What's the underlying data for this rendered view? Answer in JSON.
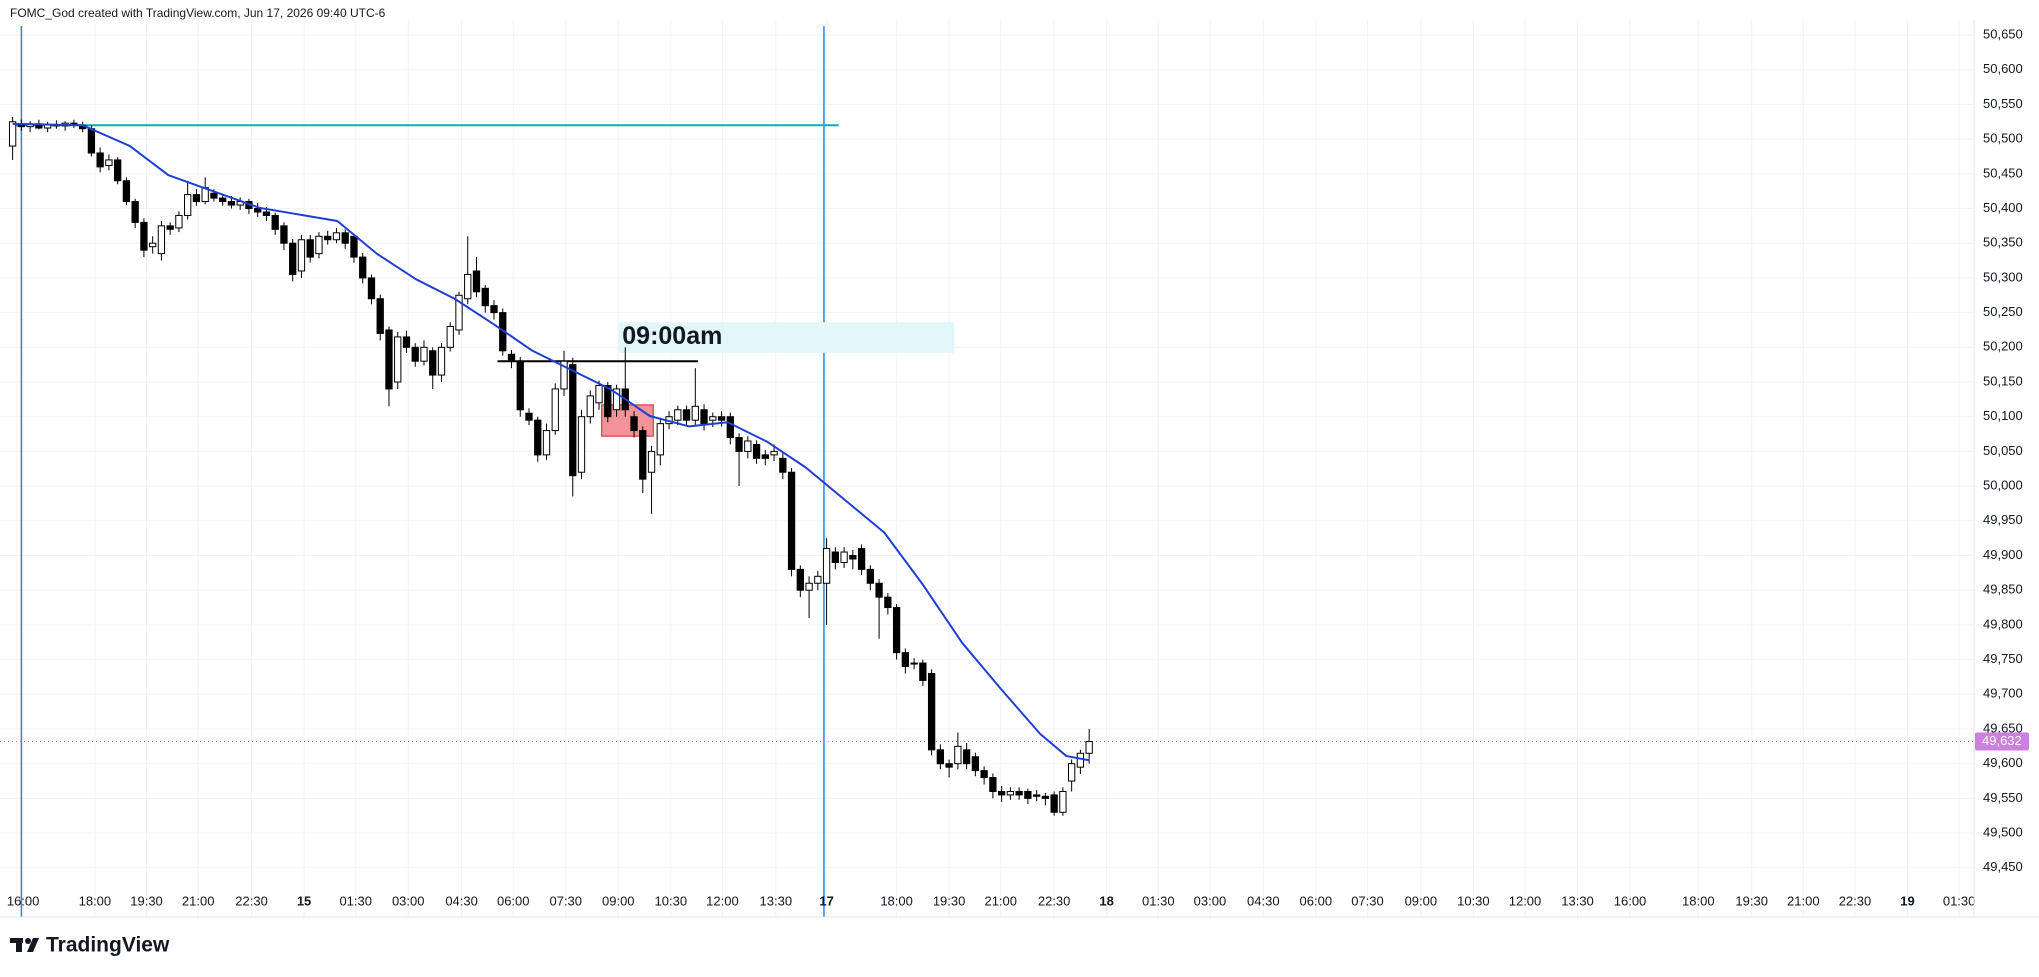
{
  "header": "FOMC_God created with TradingView.com, Jun 17, 2026 09:40 UTC-6",
  "footer": {
    "brand": "TradingView"
  },
  "chart_data": {
    "type": "candlestick",
    "up_color": "#ffffff",
    "down_color": "#000000",
    "border_color": "#000000",
    "grid": true,
    "xlim": [
      -0.3,
      224.1
    ],
    "ylim": [
      49418,
      50663
    ],
    "yticks": [
      {
        "value": 49450,
        "label": "49,450"
      },
      {
        "value": 49500,
        "label": "49,500"
      },
      {
        "value": 49550,
        "label": "49,550"
      },
      {
        "value": 49600,
        "label": "49,600"
      },
      {
        "value": 49650,
        "label": "49,650"
      },
      {
        "value": 49700,
        "label": "49,700"
      },
      {
        "value": 49750,
        "label": "49,750"
      },
      {
        "value": 49800,
        "label": "49,800"
      },
      {
        "value": 49850,
        "label": "49,850"
      },
      {
        "value": 49900,
        "label": "49,900"
      },
      {
        "value": 49950,
        "label": "49,950"
      },
      {
        "value": 50000,
        "label": "50,000"
      },
      {
        "value": 50050,
        "label": "50,050"
      },
      {
        "value": 50100,
        "label": "50,100"
      },
      {
        "value": 50150,
        "label": "50,150"
      },
      {
        "value": 50200,
        "label": "50,200"
      },
      {
        "value": 50250,
        "label": "50,250"
      },
      {
        "value": 50300,
        "label": "50,300"
      },
      {
        "value": 50350,
        "label": "50,350"
      },
      {
        "value": 50400,
        "label": "50,400"
      },
      {
        "value": 50450,
        "label": "50,450"
      },
      {
        "value": 50500,
        "label": "50,500"
      },
      {
        "value": 50550,
        "label": "50,550"
      },
      {
        "value": 50600,
        "label": "50,600"
      },
      {
        "value": 50650,
        "label": "50,650"
      }
    ],
    "xticks": [
      {
        "value": 1.2,
        "label": "16:00"
      },
      {
        "value": 9.4,
        "label": "18:00"
      },
      {
        "value": 15.3,
        "label": "19:30"
      },
      {
        "value": 21.2,
        "label": "21:00"
      },
      {
        "value": 27.3,
        "label": "22:30"
      },
      {
        "value": 33.3,
        "label": "15"
      },
      {
        "value": 39.2,
        "label": "01:30"
      },
      {
        "value": 45.2,
        "label": "03:00"
      },
      {
        "value": 51.3,
        "label": "04:30"
      },
      {
        "value": 57.2,
        "label": "06:00"
      },
      {
        "value": 63.2,
        "label": "07:30"
      },
      {
        "value": 69.2,
        "label": "09:00"
      },
      {
        "value": 75.2,
        "label": "10:30"
      },
      {
        "value": 81.1,
        "label": "12:00"
      },
      {
        "value": 87.2,
        "label": "13:30"
      },
      {
        "value": 93.0,
        "label": "17"
      },
      {
        "value": 101.0,
        "label": "18:00"
      },
      {
        "value": 107.0,
        "label": "19:30"
      },
      {
        "value": 112.9,
        "label": "21:00"
      },
      {
        "value": 119.0,
        "label": "22:30"
      },
      {
        "value": 125.0,
        "label": "18"
      },
      {
        "value": 130.9,
        "label": "01:30"
      },
      {
        "value": 136.8,
        "label": "03:00"
      },
      {
        "value": 142.9,
        "label": "04:30"
      },
      {
        "value": 148.9,
        "label": "06:00"
      },
      {
        "value": 154.8,
        "label": "07:30"
      },
      {
        "value": 160.9,
        "label": "09:00"
      },
      {
        "value": 166.9,
        "label": "10:30"
      },
      {
        "value": 172.8,
        "label": "12:00"
      },
      {
        "value": 178.8,
        "label": "13:30"
      },
      {
        "value": 184.8,
        "label": "16:00"
      },
      {
        "value": 192.6,
        "label": "18:00"
      },
      {
        "value": 198.7,
        "label": "19:30"
      },
      {
        "value": 204.6,
        "label": "21:00"
      },
      {
        "value": 210.5,
        "label": "22:30"
      },
      {
        "value": 216.5,
        "label": "19"
      },
      {
        "value": 222.4,
        "label": "01:30"
      }
    ],
    "open": [
      50490,
      50522,
      50518,
      50522,
      50516,
      50521,
      50519,
      50523,
      50520,
      50515,
      50480,
      50462,
      50470,
      50440,
      50410,
      50380,
      50345,
      50335,
      50375,
      50372,
      50390,
      50420,
      50410,
      50422,
      50415,
      50410,
      50405,
      50410,
      50400,
      50395,
      50390,
      50375,
      50350,
      50310,
      50355,
      50335,
      50360,
      50355,
      50365,
      50360,
      50330,
      50300,
      50270,
      50225,
      50150,
      50215,
      50200,
      50180,
      50195,
      50160,
      50200,
      50225,
      50270,
      50310,
      50285,
      50260,
      50250,
      50190,
      50180,
      50105,
      50095,
      50045,
      50080,
      50140,
      50175,
      50020,
      50100,
      50120,
      50145,
      50110,
      50140,
      50100,
      50080,
      50020,
      50045,
      50090,
      50095,
      50110,
      50095,
      50110,
      50095,
      50100,
      50100,
      50070,
      50050,
      50060,
      50045,
      50045,
      50040,
      50020,
      49880,
      49850,
      49860,
      49860,
      49905,
      49890,
      49900,
      49910,
      49880,
      49860,
      49840,
      49825,
      49760,
      49745,
      49745,
      49730,
      49620,
      49600,
      49600,
      49620,
      49610,
      49590,
      49580,
      49560,
      49555,
      49560,
      49560,
      49555,
      49553,
      49555,
      49530,
      49575,
      49595,
      49615
    ],
    "high": [
      50532,
      50528,
      50526,
      50528,
      50525,
      50527,
      50526,
      50528,
      50525,
      50520,
      50488,
      50478,
      50474,
      50445,
      50414,
      50386,
      50360,
      50382,
      50380,
      50396,
      50440,
      50428,
      50445,
      50428,
      50420,
      50418,
      50416,
      50414,
      50408,
      50402,
      50394,
      50380,
      50356,
      50362,
      50362,
      50366,
      50368,
      50372,
      50370,
      50364,
      50336,
      50305,
      50276,
      50230,
      50222,
      50224,
      50206,
      50210,
      50200,
      50206,
      50236,
      50280,
      50360,
      50330,
      50290,
      50268,
      50256,
      50196,
      50186,
      50112,
      50100,
      50090,
      50148,
      50195,
      50185,
      50110,
      50138,
      50152,
      50150,
      50146,
      50200,
      50108,
      50086,
      50058,
      50098,
      50108,
      50116,
      50116,
      50170,
      50118,
      50106,
      50108,
      50106,
      50076,
      50072,
      50066,
      50052,
      50060,
      50048,
      50026,
      49886,
      49870,
      49878,
      49925,
      49912,
      49912,
      49908,
      49916,
      49886,
      49866,
      49846,
      49830,
      49766,
      49752,
      49750,
      49736,
      49628,
      49606,
      49645,
      49630,
      49616,
      49596,
      49586,
      49568,
      49566,
      49566,
      49564,
      49562,
      49558,
      49560,
      49566,
      49606,
      49620,
      49650
    ],
    "low": [
      50470,
      50512,
      50510,
      50514,
      50510,
      50515,
      50512,
      50516,
      50510,
      50475,
      50452,
      50455,
      50435,
      50405,
      50372,
      50330,
      50335,
      50325,
      50362,
      50366,
      50384,
      50404,
      50406,
      50410,
      50404,
      50400,
      50398,
      50392,
      50388,
      50382,
      50362,
      50340,
      50295,
      50300,
      50322,
      50328,
      50348,
      50350,
      50342,
      50322,
      50292,
      50262,
      50210,
      50115,
      50140,
      50192,
      50172,
      50174,
      50140,
      50150,
      50194,
      50218,
      50262,
      50272,
      50250,
      50240,
      50188,
      50170,
      50100,
      50088,
      50035,
      50038,
      50074,
      50130,
      49985,
      50010,
      50090,
      50110,
      50092,
      50100,
      50100,
      50070,
      49990,
      49960,
      50030,
      50082,
      50088,
      50086,
      50088,
      50080,
      50085,
      50086,
      50060,
      50000,
      50040,
      50032,
      50030,
      50036,
      50010,
      49870,
      49840,
      49810,
      49850,
      49800,
      49880,
      49882,
      49880,
      49872,
      49850,
      49780,
      49815,
      49750,
      49730,
      49736,
      49712,
      49612,
      49592,
      49580,
      49592,
      49592,
      49582,
      49570,
      49550,
      49545,
      49548,
      49548,
      49542,
      49546,
      49540,
      49525,
      49525,
      49560,
      49585,
      49600
    ],
    "close": [
      50525,
      50518,
      50522,
      50516,
      50521,
      50519,
      50523,
      50520,
      50515,
      50480,
      50460,
      50470,
      50440,
      50410,
      50380,
      50340,
      50350,
      50375,
      50370,
      50390,
      50420,
      50410,
      50430,
      50415,
      50410,
      50405,
      50410,
      50400,
      50395,
      50390,
      50370,
      50350,
      50305,
      50355,
      50330,
      50360,
      50355,
      50365,
      50350,
      50330,
      50300,
      50270,
      50220,
      50140,
      50215,
      50200,
      50180,
      50200,
      50160,
      50200,
      50230,
      50275,
      50305,
      50280,
      50260,
      50250,
      50195,
      50180,
      50110,
      50095,
      50045,
      50080,
      50140,
      50180,
      50015,
      50100,
      50130,
      50145,
      50100,
      50140,
      50110,
      50080,
      50010,
      50050,
      50090,
      50100,
      50110,
      50095,
      50115,
      50090,
      50100,
      50095,
      50070,
      50050,
      50065,
      50040,
      50040,
      50050,
      50020,
      49880,
      49850,
      49860,
      49870,
      49910,
      49890,
      49905,
      49895,
      49880,
      49860,
      49840,
      49825,
      49760,
      49740,
      49745,
      49720,
      49620,
      49600,
      49595,
      49625,
      49600,
      49590,
      49580,
      49560,
      49555,
      49560,
      49555,
      49550,
      49553,
      49550,
      49530,
      49560,
      49600,
      49615,
      49632
    ],
    "ema": {
      "color": "#1e3fd0",
      "x": [
        0,
        8,
        13.4,
        17.8,
        28.2,
        37.1,
        41.6,
        46.1,
        50.5,
        55,
        59.4,
        63.9,
        68.4,
        72.8,
        77.3,
        81.7,
        86.2,
        90.6,
        95.1,
        99.6,
        104,
        108.5,
        112.9,
        117.4,
        120.4,
        123
      ],
      "values": [
        50522,
        50520,
        50490,
        50448,
        50401,
        50382,
        50335,
        50298,
        50270,
        50233,
        50195,
        50167,
        50139,
        50101,
        50086,
        50092,
        50064,
        50027,
        49980,
        49933,
        49858,
        49774,
        49708,
        49643,
        49611,
        49605
      ]
    },
    "last_price": {
      "value": 49632,
      "label": "49,632",
      "color": "#cc7fdc"
    },
    "drawings": {
      "vertical_lines": {
        "color": "#2a86e0",
        "x": [
          1.0,
          92.7
        ]
      },
      "level_line": {
        "color": "#00acc1",
        "y": 50520,
        "x": [
          0,
          94.4
        ]
      },
      "open_line": {
        "color": "#000000",
        "y": 50180,
        "x": [
          55.4,
          78.3
        ]
      },
      "label_box": {
        "text": "09:00am",
        "fill": "#e3f6fa",
        "y": [
          50192,
          50236
        ],
        "x": [
          69.2,
          107.6
        ]
      },
      "zone_box": {
        "fill": "#f08088",
        "stroke": "#d63b47",
        "y": [
          50072,
          50117
        ],
        "x": [
          67.3,
          73.2
        ]
      }
    }
  }
}
